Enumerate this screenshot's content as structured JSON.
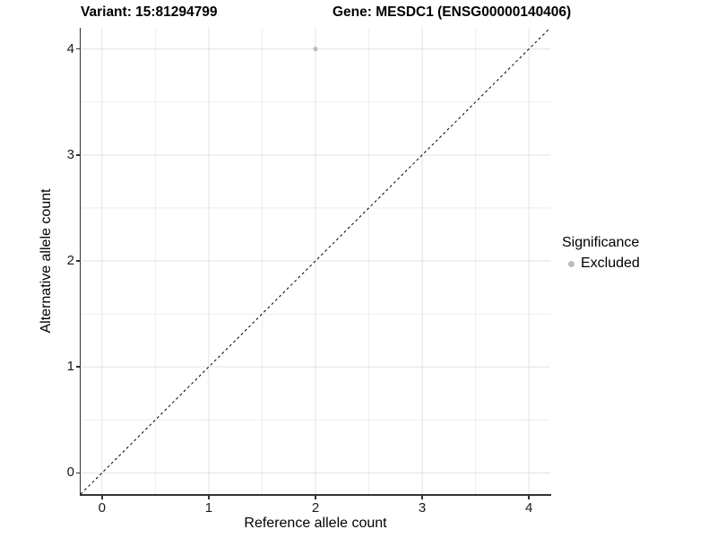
{
  "titles": {
    "variant": "Variant: 15:81294799",
    "gene": "Gene: MESDC1 (ENSG00000140406)"
  },
  "chart_data": {
    "type": "scatter",
    "title_left": "Variant: 15:81294799",
    "title_right": "Gene: MESDC1 (ENSG00000140406)",
    "xlabel": "Reference allele count",
    "ylabel": "Alternative allele count",
    "xlim": [
      -0.2,
      4.2
    ],
    "ylim": [
      -0.2,
      4.2
    ],
    "xticks": [
      0,
      1,
      2,
      3,
      4
    ],
    "yticks": [
      0,
      1,
      2,
      3,
      4
    ],
    "minor_xticks": [
      0.5,
      1.5,
      2.5,
      3.5
    ],
    "minor_yticks": [
      0.5,
      1.5,
      2.5,
      3.5
    ],
    "grid": true,
    "background": "#ffffff",
    "colors": {
      "grid_major": "#e3e3e3",
      "grid_minor": "#eeeeee",
      "axis_line": "#333333",
      "point": "#bdbdbd",
      "identity_line": "#000000"
    },
    "series": [
      {
        "name": "Excluded",
        "color": "#bdbdbd",
        "points": [
          {
            "x": 2,
            "y": 4
          }
        ]
      }
    ],
    "reference_line": {
      "type": "identity (y = x)",
      "style": "dashed",
      "color": "#000000"
    },
    "legend": {
      "position": "right",
      "title": "Significance",
      "entries": [
        {
          "label": "Excluded",
          "color": "#bdbdbd"
        }
      ]
    }
  }
}
